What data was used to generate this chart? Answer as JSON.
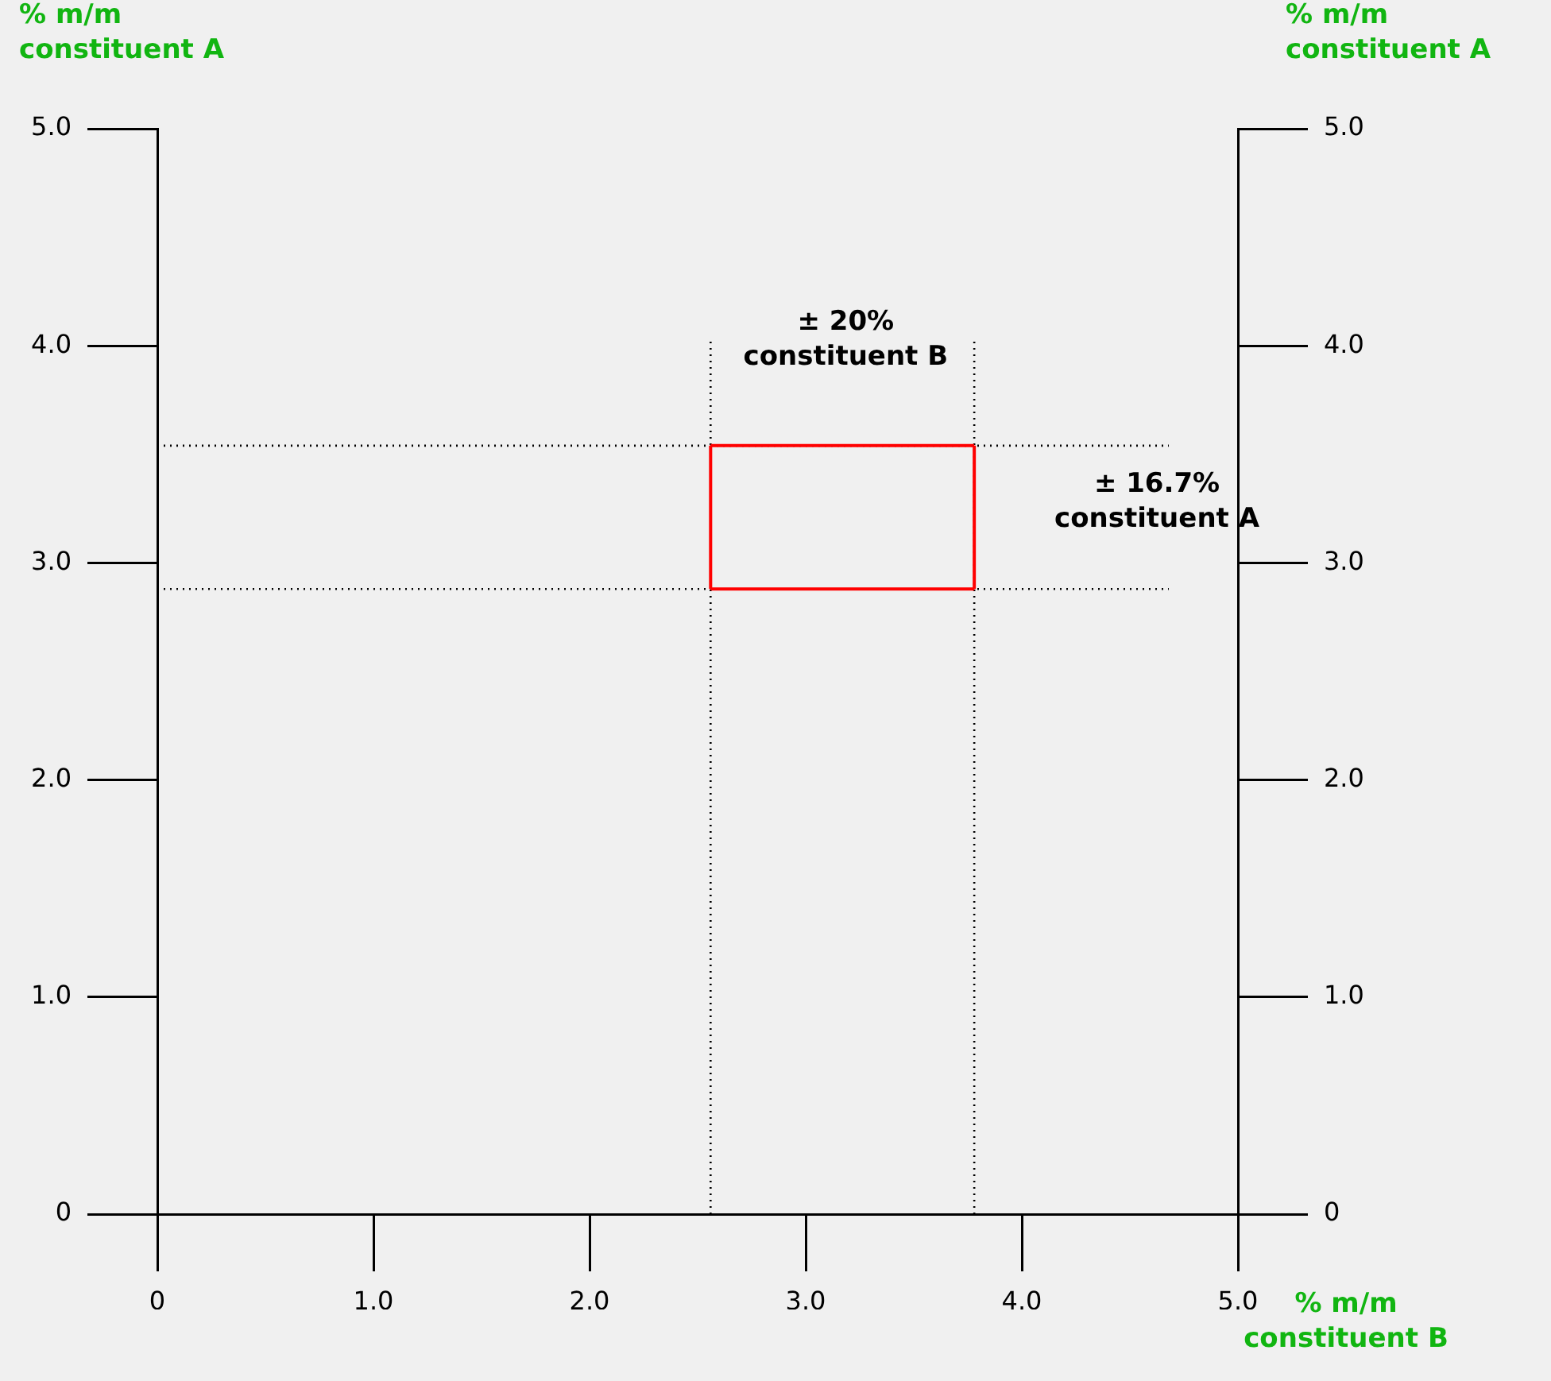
{
  "chart_data": {
    "type": "line",
    "xlabel": "% m/m\nconstituent B",
    "ylabel": "% m/m\nconstituent A",
    "y2label": "% m/m\nconstituent A",
    "xlim": [
      0,
      5
    ],
    "xticks": [
      0,
      {
        "value": 1,
        "label": "1.0"
      },
      {
        "value": 2,
        "label": "2.0"
      },
      {
        "value": 3,
        "label": "3.0"
      },
      {
        "value": 4,
        "label": "4.0"
      },
      {
        "value": 5,
        "label": "5.0"
      }
    ],
    "ylim": [
      0,
      5
    ],
    "yticks": [
      0,
      {
        "value": 1,
        "label": "1.0"
      },
      {
        "value": 2,
        "label": "2.0"
      },
      {
        "value": 3,
        "label": "3.0"
      },
      {
        "value": 4,
        "label": "4.0"
      },
      {
        "value": 5,
        "label": "5.0"
      }
    ],
    "y2lim": [
      0,
      5
    ],
    "y2ticks": [
      0,
      {
        "value": 1,
        "label": "1.0"
      },
      {
        "value": 2,
        "label": "2.0"
      },
      {
        "value": 3,
        "label": "3.0"
      },
      {
        "value": 4,
        "label": "4.0"
      },
      {
        "value": 5,
        "label": "5.0"
      }
    ],
    "series": [
      {
        "color": "#ff0000",
        "line_style": "solid",
        "x": [
          2.56,
          3.78
        ],
        "values": [
          2.88,
          2.88
        ]
      },
      {
        "color": "#ff0000",
        "line_style": "solid",
        "x": [
          2.56,
          3.78
        ],
        "values": [
          3.54,
          3.54
        ]
      },
      {
        "color": "#ff0000",
        "line_style": "solid",
        "x": [
          2.56,
          2.56
        ],
        "values": [
          2.88,
          3.54
        ]
      },
      {
        "color": "#ff0000",
        "line_style": "solid",
        "x": [
          3.78,
          3.78
        ],
        "values": [
          2.88,
          3.54
        ]
      },
      {
        "color": "#000000",
        "line_style": "dotted",
        "x": [
          0,
          4.68
        ],
        "values": [
          3.54,
          3.54
        ]
      },
      {
        "color": "#000000",
        "line_style": "dotted",
        "x": [
          0,
          4.68
        ],
        "values": [
          2.88,
          2.88
        ]
      },
      {
        "color": "#000000",
        "line_style": "dotted",
        "x": [
          2.56,
          2.56
        ],
        "values": [
          0,
          4.02
        ]
      },
      {
        "color": "#000000",
        "line_style": "dotted",
        "x": [
          3.78,
          3.78
        ],
        "values": [
          0,
          4.02
        ]
      }
    ],
    "annotations": [
      "± 20%\nconstituent B",
      "± 16.7%\nconstituent A"
    ],
    "marker": "none",
    "grid": false,
    "legend": false
  }
}
